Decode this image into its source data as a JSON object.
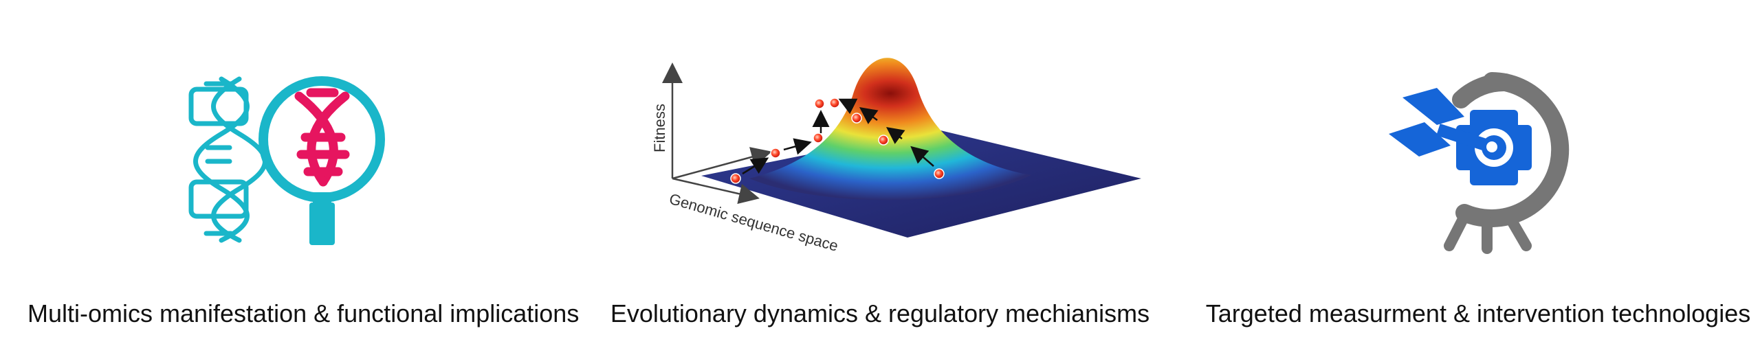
{
  "panels": [
    {
      "id": "omics",
      "caption": "Multi-omics manifestation & functional implications",
      "icon": "dna-magnifier-icon",
      "colors": {
        "teal": "#1ab6c9",
        "magenta": "#e6155f"
      }
    },
    {
      "id": "evolution",
      "caption": "Evolutionary dynamics & regulatory mechianisms",
      "icon": "fitness-landscape-illustration",
      "axes": {
        "y_label": "Fitness",
        "x_label": "Genomic sequence space"
      },
      "colors": {
        "plane": "#2b2d72",
        "peak": "#c8241a",
        "point": "#ff4a2a"
      }
    },
    {
      "id": "technology",
      "caption": "Targeted measurment & intervention technologies",
      "icon": "target-arrow-icon",
      "colors": {
        "target": "#767676",
        "arrow": "#1565d8"
      }
    }
  ]
}
